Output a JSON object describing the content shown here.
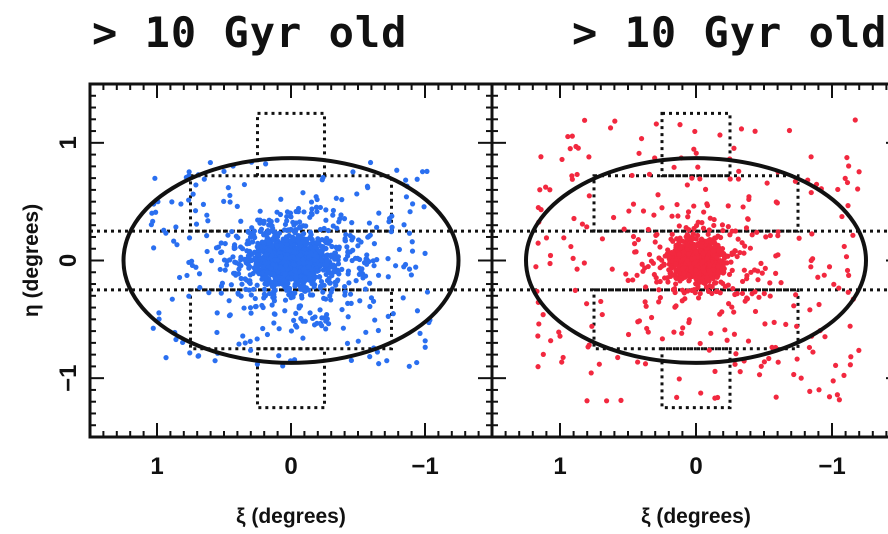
{
  "panels": [
    {
      "title": "> 10 Gyr old",
      "color": "#2a6ff0"
    },
    {
      "title": "> 10 Gyr old",
      "color": "#f2283f"
    }
  ],
  "chart_data": [
    {
      "type": "scatter",
      "title": "> 10 Gyr old",
      "xlabel": "ξ (degrees)",
      "ylabel": "η (degrees)",
      "xlim": [
        1.5,
        -1.5
      ],
      "ylim": [
        -1.5,
        1.5
      ],
      "x_ticks": [
        "1",
        "0",
        "−1"
      ],
      "y_ticks": [
        "1",
        "0",
        "−1"
      ],
      "series": [
        {
          "color": "#2a6ff0",
          "marker": "dot",
          "density": "dense central concentration, wide scatter"
        }
      ],
      "ellipse": {
        "center": [
          0.0,
          0.0
        ],
        "semi_major": 1.25,
        "semi_minor": 0.87
      },
      "fields": {
        "cross_half_width": 0.25,
        "tiles_outline": "dotted"
      }
    },
    {
      "type": "scatter",
      "title": "> 10 Gyr old",
      "xlabel": "ξ (degrees)",
      "ylabel": "",
      "xlim": [
        1.5,
        -1.5
      ],
      "ylim": [
        -1.5,
        1.5
      ],
      "x_ticks": [
        "1",
        "0",
        "−1"
      ],
      "y_ticks": [],
      "series": [
        {
          "color": "#f2283f",
          "marker": "dot",
          "density": "compact central concentration, sparse halo"
        }
      ],
      "ellipse": {
        "center": [
          0.0,
          0.0
        ],
        "semi_major": 1.25,
        "semi_minor": 0.87
      },
      "fields": {
        "cross_half_width": 0.25,
        "tiles_outline": "dotted"
      }
    }
  ]
}
